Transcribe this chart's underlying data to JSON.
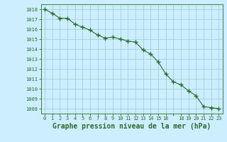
{
  "x": [
    0,
    1,
    2,
    3,
    4,
    5,
    6,
    7,
    8,
    9,
    10,
    11,
    12,
    13,
    14,
    15,
    16,
    17,
    18,
    19,
    20,
    21,
    22,
    23
  ],
  "y": [
    1018.0,
    1017.6,
    1017.1,
    1017.1,
    1016.5,
    1016.2,
    1015.9,
    1015.4,
    1015.1,
    1015.2,
    1015.0,
    1014.8,
    1014.7,
    1013.9,
    1013.5,
    1012.7,
    1011.5,
    1010.7,
    1010.4,
    1009.8,
    1009.3,
    1008.2,
    1008.1,
    1008.0
  ],
  "xtick_labels": [
    "0",
    "1",
    "2",
    "3",
    "4",
    "5",
    "6",
    "7",
    "8",
    "9",
    "10",
    "11",
    "12",
    "13",
    "14",
    "15",
    "16",
    " ",
    "18",
    "19",
    "20",
    "21",
    "22",
    "23"
  ],
  "line_color": "#2d6a2d",
  "marker": "+",
  "marker_size": 4,
  "marker_linewidth": 1.0,
  "line_width": 0.8,
  "background_color": "#cceeff",
  "grid_color": "#99cccc",
  "ylabel_ticks": [
    1008,
    1009,
    1010,
    1011,
    1012,
    1013,
    1014,
    1015,
    1016,
    1017,
    1018
  ],
  "xlabel_label": "Graphe pression niveau de la mer (hPa)",
  "ylim": [
    1007.5,
    1018.5
  ],
  "xlim": [
    -0.5,
    23.5
  ],
  "tick_color": "#2d6a2d",
  "axis_color": "#2d6a2d",
  "label_color": "#2d6a2d",
  "xlabel_fontsize": 7,
  "tick_fontsize": 5,
  "label_fontweight": "bold"
}
